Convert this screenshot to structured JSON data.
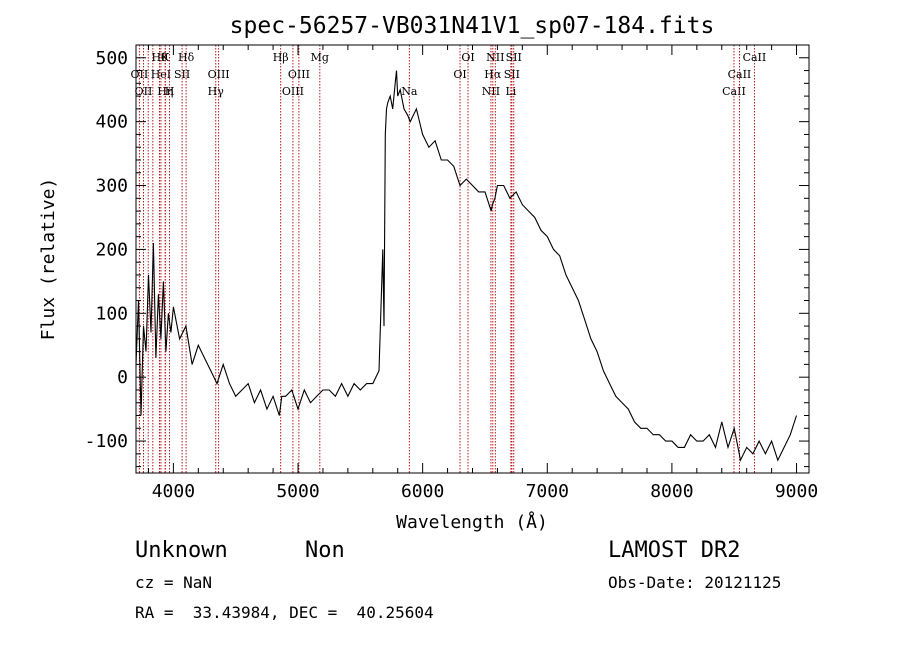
{
  "chart_data": {
    "type": "line",
    "title": "spec-56257-VB031N41V1_sp07-184.fits",
    "xlabel": "Wavelength (Å)",
    "ylabel": "Flux (relative)",
    "xlim": [
      3700,
      9100
    ],
    "ylim": [
      -150,
      520
    ],
    "xticks": [
      4000,
      5000,
      6000,
      7000,
      8000,
      9000
    ],
    "yticks": [
      -100,
      0,
      100,
      200,
      300,
      400,
      500
    ],
    "grid": false,
    "series": [
      {
        "x": [
          3700,
          3720,
          3740,
          3760,
          3780,
          3800,
          3820,
          3840,
          3860,
          3880,
          3900,
          3920,
          3940,
          3960,
          3980,
          4000,
          4050,
          4100,
          4150,
          4200,
          4250,
          4300,
          4350,
          4400,
          4450,
          4500,
          4550,
          4600,
          4650,
          4700,
          4750,
          4800,
          4850,
          4870,
          4900,
          4950,
          5000,
          5050,
          5100,
          5150,
          5200,
          5250,
          5300,
          5350,
          5400,
          5450,
          5500,
          5550,
          5600,
          5650,
          5680,
          5690,
          5700,
          5710,
          5720,
          5740,
          5760,
          5780,
          5790,
          5800,
          5820,
          5850,
          5880,
          5900,
          5950,
          6000,
          6050,
          6100,
          6150,
          6200,
          6250,
          6300,
          6350,
          6400,
          6450,
          6500,
          6550,
          6560,
          6580,
          6600,
          6650,
          6700,
          6750,
          6800,
          6850,
          6900,
          6950,
          7000,
          7050,
          7100,
          7150,
          7200,
          7250,
          7300,
          7350,
          7400,
          7450,
          7500,
          7550,
          7600,
          7650,
          7700,
          7750,
          7800,
          7850,
          7900,
          7950,
          8000,
          8050,
          8100,
          8150,
          8200,
          8250,
          8300,
          8350,
          8400,
          8450,
          8500,
          8550,
          8600,
          8650,
          8700,
          8750,
          8800,
          8850,
          8900,
          8950,
          9000
        ],
        "values": [
          20,
          120,
          -60,
          80,
          40,
          160,
          70,
          210,
          30,
          130,
          60,
          150,
          40,
          100,
          70,
          110,
          60,
          80,
          20,
          50,
          30,
          10,
          -10,
          20,
          -10,
          -30,
          -20,
          -10,
          -40,
          -20,
          -50,
          -30,
          -60,
          -30,
          -30,
          -20,
          -50,
          -20,
          -40,
          -30,
          -20,
          -20,
          -30,
          -10,
          -30,
          -10,
          -20,
          -10,
          -10,
          10,
          200,
          80,
          380,
          420,
          430,
          440,
          420,
          460,
          480,
          440,
          450,
          420,
          410,
          400,
          420,
          380,
          360,
          370,
          340,
          340,
          330,
          300,
          310,
          300,
          290,
          290,
          260,
          270,
          280,
          300,
          300,
          280,
          290,
          270,
          260,
          250,
          230,
          220,
          200,
          190,
          160,
          140,
          120,
          90,
          60,
          40,
          10,
          -10,
          -30,
          -40,
          -50,
          -70,
          -80,
          -80,
          -90,
          -90,
          -100,
          -100,
          -110,
          -110,
          -90,
          -100,
          -100,
          -90,
          -110,
          -70,
          -110,
          -80,
          -130,
          -110,
          -120,
          -100,
          -120,
          -100,
          -130,
          -110,
          -90,
          -60
        ]
      }
    ],
    "lines": [
      {
        "x": 3727,
        "label": "OII",
        "row": 1
      },
      {
        "x": 3760,
        "label": "OII",
        "row": 2
      },
      {
        "x": 3798,
        "label": "",
        "row": 0
      },
      {
        "x": 3835,
        "label": "",
        "row": 0
      },
      {
        "x": 3889,
        "label": "Hθ",
        "row": 0
      },
      {
        "x": 3900,
        "label": "HeI",
        "row": 1
      },
      {
        "x": 3935,
        "label": "Hη",
        "row": 2
      },
      {
        "x": 3934,
        "label": "K",
        "row": 0
      },
      {
        "x": 3969,
        "label": "H",
        "row": 2
      },
      {
        "x": 4070,
        "label": "SII",
        "row": 1
      },
      {
        "x": 4102,
        "label": "Hδ",
        "row": 0
      },
      {
        "x": 4340,
        "label": "Hγ",
        "row": 2
      },
      {
        "x": 4363,
        "label": "OIII",
        "row": 1
      },
      {
        "x": 4861,
        "label": "Hβ",
        "row": 0
      },
      {
        "x": 4959,
        "label": "OIII",
        "row": 2
      },
      {
        "x": 5007,
        "label": "OIII",
        "row": 1
      },
      {
        "x": 5175,
        "label": "Mg",
        "row": 0
      },
      {
        "x": 5893,
        "label": "Na",
        "row": 2
      },
      {
        "x": 6300,
        "label": "OI",
        "row": 1
      },
      {
        "x": 6364,
        "label": "OI",
        "row": 0
      },
      {
        "x": 6548,
        "label": "NII",
        "row": 2
      },
      {
        "x": 6563,
        "label": "Hα",
        "row": 1
      },
      {
        "x": 6583,
        "label": "NII",
        "row": 0
      },
      {
        "x": 6708,
        "label": "Li",
        "row": 2
      },
      {
        "x": 6716,
        "label": "SII",
        "row": 1
      },
      {
        "x": 6731,
        "label": "SII",
        "row": 0
      },
      {
        "x": 8498,
        "label": "CaII",
        "row": 2
      },
      {
        "x": 8542,
        "label": "CaII",
        "row": 1
      },
      {
        "x": 8662,
        "label": "CaII",
        "row": 0
      }
    ]
  },
  "info": {
    "class": "Unknown",
    "subclass": "Non",
    "survey": "LAMOST DR2",
    "cz": "cz = NaN",
    "obs_date": "Obs-Date: 20121125",
    "coords": "RA =  33.43984, DEC =  40.25604"
  }
}
